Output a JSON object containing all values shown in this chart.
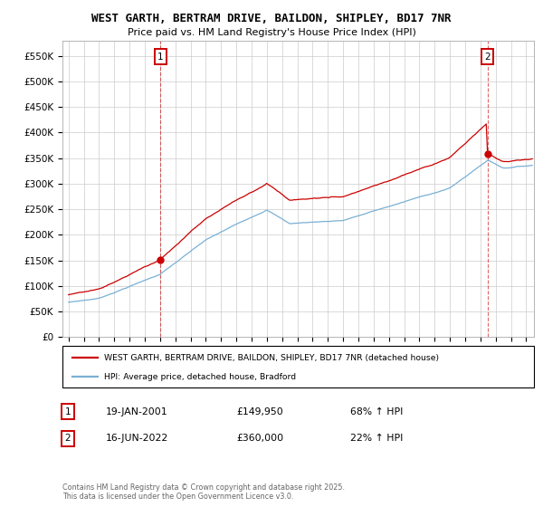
{
  "title": "WEST GARTH, BERTRAM DRIVE, BAILDON, SHIPLEY, BD17 7NR",
  "subtitle": "Price paid vs. HM Land Registry's House Price Index (HPI)",
  "legend_line1": "WEST GARTH, BERTRAM DRIVE, BAILDON, SHIPLEY, BD17 7NR (detached house)",
  "legend_line2": "HPI: Average price, detached house, Bradford",
  "annotation1_date": "19-JAN-2001",
  "annotation1_price": "£149,950",
  "annotation1_hpi": "68% ↑ HPI",
  "annotation2_date": "16-JUN-2022",
  "annotation2_price": "£360,000",
  "annotation2_hpi": "22% ↑ HPI",
  "footnote": "Contains HM Land Registry data © Crown copyright and database right 2025.\nThis data is licensed under the Open Government Licence v3.0.",
  "red_color": "#cc0000",
  "blue_color": "#7ab0d4",
  "ylim_min": 0,
  "ylim_max": 580000,
  "yticks": [
    0,
    50000,
    100000,
    150000,
    200000,
    250000,
    300000,
    350000,
    400000,
    450000,
    500000,
    550000
  ],
  "background_color": "#ffffff",
  "grid_color": "#cccccc",
  "purchase1_year": 2001.05,
  "purchase1_price": 149950,
  "purchase2_year": 2022.46,
  "purchase2_price": 360000
}
